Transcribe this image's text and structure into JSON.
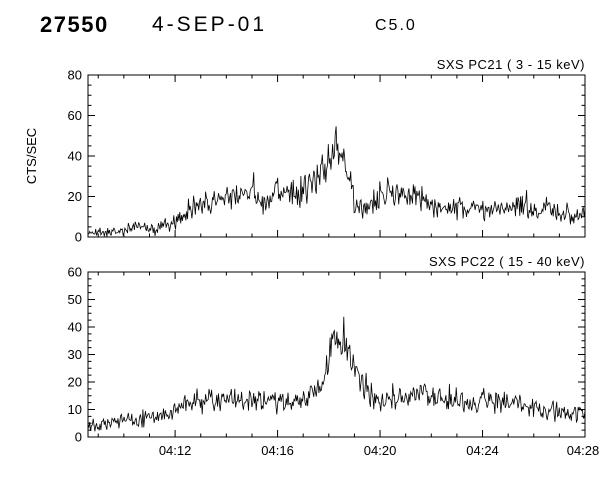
{
  "header": {
    "event_number": "27550",
    "date": "4-SEP-01",
    "flare_class": "C5.0"
  },
  "colors": {
    "trace": "#000000",
    "background": "#ffffff",
    "axis": "#000000"
  },
  "chart_data": [
    {
      "type": "line",
      "title": "SXS PC21 (  3 - 15 keV)",
      "ylabel": "CTS/SEC",
      "ylim": [
        0,
        80
      ],
      "yticks": [
        0,
        20,
        40,
        60,
        80
      ],
      "y_minor_step": 5,
      "xlim_minutes": [
        8.6,
        28
      ],
      "xticks_minutes": [
        12,
        16,
        20,
        24,
        28
      ],
      "xtick_labels": [
        "04:12",
        "04:16",
        "04:20",
        "04:24",
        "04:28"
      ],
      "x_minor_step": 1,
      "show_x_labels": false,
      "noise_amplitude": 5,
      "noise_ref": 22,
      "seed": 21,
      "envelope": [
        [
          8.6,
          2
        ],
        [
          10,
          3
        ],
        [
          10.4,
          5
        ],
        [
          11,
          4
        ],
        [
          11.5,
          5
        ],
        [
          12,
          8
        ],
        [
          12.5,
          14
        ],
        [
          13,
          16
        ],
        [
          13.5,
          18
        ],
        [
          14,
          20
        ],
        [
          14.5,
          21
        ],
        [
          15,
          22
        ],
        [
          15.3,
          16
        ],
        [
          15.7,
          21
        ],
        [
          16,
          23
        ],
        [
          16.5,
          21
        ],
        [
          17,
          23
        ],
        [
          17.5,
          27
        ],
        [
          18,
          38
        ],
        [
          18.25,
          45
        ],
        [
          18.5,
          40
        ],
        [
          18.8,
          28
        ],
        [
          19,
          17
        ],
        [
          19.3,
          13
        ],
        [
          19.8,
          18
        ],
        [
          20.3,
          22
        ],
        [
          21,
          21
        ],
        [
          21.5,
          19
        ],
        [
          22,
          16
        ],
        [
          22.5,
          13
        ],
        [
          23,
          14
        ],
        [
          23.5,
          15
        ],
        [
          24,
          13
        ],
        [
          24.5,
          15
        ],
        [
          25,
          14
        ],
        [
          25.5,
          16
        ],
        [
          26,
          13
        ],
        [
          26.5,
          13
        ],
        [
          27,
          12
        ],
        [
          27.5,
          11
        ],
        [
          28,
          10
        ]
      ]
    },
    {
      "type": "line",
      "title": "SXS PC22 ( 15 - 40 keV)",
      "ylabel": "",
      "ylim": [
        0,
        60
      ],
      "yticks": [
        0,
        10,
        20,
        30,
        40,
        50,
        60
      ],
      "y_minor_step": 2.5,
      "xlim_minutes": [
        8.6,
        28
      ],
      "xticks_minutes": [
        12,
        16,
        20,
        24,
        28
      ],
      "xtick_labels": [
        "04:12",
        "04:16",
        "04:20",
        "04:24",
        "04:28"
      ],
      "x_minor_step": 1,
      "show_x_labels": true,
      "noise_amplitude": 4,
      "noise_ref": 22,
      "seed": 22,
      "envelope": [
        [
          8.6,
          5
        ],
        [
          10,
          6
        ],
        [
          11,
          7
        ],
        [
          12,
          9
        ],
        [
          12.5,
          13
        ],
        [
          13,
          13
        ],
        [
          13.5,
          14
        ],
        [
          14,
          13
        ],
        [
          15,
          13
        ],
        [
          16,
          13
        ],
        [
          16.5,
          14
        ],
        [
          17,
          13
        ],
        [
          17.5,
          15
        ],
        [
          17.8,
          20
        ],
        [
          18,
          30
        ],
        [
          18.3,
          38
        ],
        [
          18.6,
          33
        ],
        [
          19,
          24
        ],
        [
          19.5,
          17
        ],
        [
          20,
          14
        ],
        [
          20.5,
          13
        ],
        [
          21,
          14
        ],
        [
          21.8,
          16
        ],
        [
          22.3,
          14
        ],
        [
          23,
          13
        ],
        [
          23.7,
          12
        ],
        [
          24.3,
          14
        ],
        [
          25,
          12
        ],
        [
          25.5,
          12
        ],
        [
          26,
          10
        ],
        [
          26.7,
          9
        ],
        [
          27.3,
          9
        ],
        [
          28,
          8
        ]
      ]
    }
  ]
}
